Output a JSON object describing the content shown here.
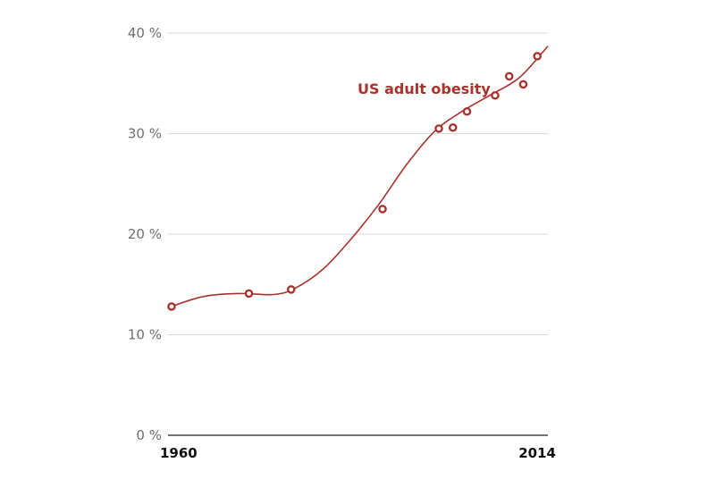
{
  "chart_data": {
    "type": "line",
    "colors": {
      "series": "#a8322d"
    },
    "y_ticks": [
      "0 %",
      "10 %",
      "20 %",
      "30 %",
      "40 %"
    ],
    "x_ticks": [
      "1960",
      "2014"
    ],
    "xlim": [
      1960,
      2014
    ],
    "ylim": [
      0,
      40
    ],
    "grid": true,
    "series": [
      {
        "name": "US adult obesity",
        "points": [
          [
            1960.5,
            12.8
          ],
          [
            1971.5,
            14.1
          ],
          [
            1977.5,
            14.5
          ],
          [
            1990.5,
            22.5
          ],
          [
            1998.5,
            30.5
          ],
          [
            2000.5,
            30.6
          ],
          [
            2002.5,
            32.2
          ],
          [
            2006.5,
            33.8
          ],
          [
            2008.5,
            35.7
          ],
          [
            2010.5,
            34.9
          ],
          [
            2012.5,
            37.7
          ]
        ],
        "trend": [
          [
            1960,
            12.7
          ],
          [
            1965,
            13.8
          ],
          [
            1970,
            14.1
          ],
          [
            1975,
            14.0
          ],
          [
            1978,
            14.6
          ],
          [
            1982,
            16.5
          ],
          [
            1986,
            19.5
          ],
          [
            1990,
            23.0
          ],
          [
            1994,
            27.0
          ],
          [
            1998,
            30.3
          ],
          [
            2002,
            32.3
          ],
          [
            2006,
            33.9
          ],
          [
            2010,
            35.6
          ],
          [
            2014,
            38.7
          ]
        ]
      }
    ]
  }
}
